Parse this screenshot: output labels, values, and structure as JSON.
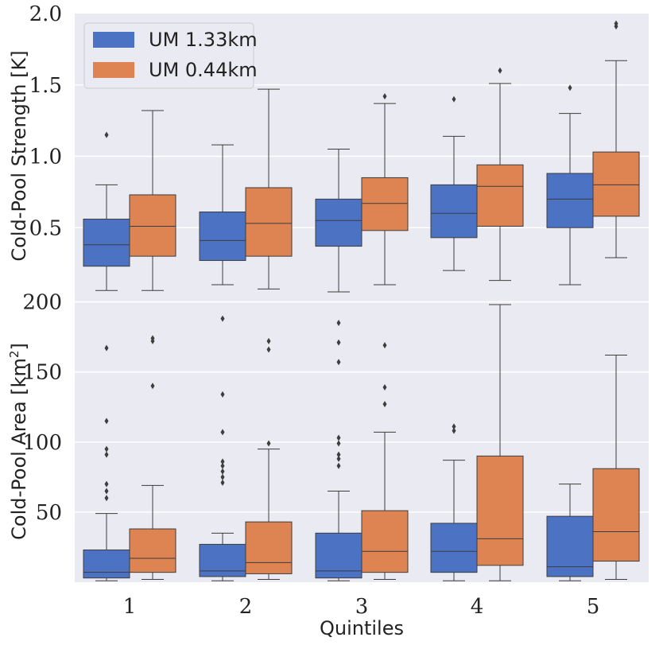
{
  "colors": {
    "panel_bg": "#eaeaf2",
    "grid": "#ffffff",
    "um133": "#4c72c4",
    "um044": "#dd8452",
    "line": "#3d3d3d",
    "text": "#222222"
  },
  "legend": {
    "um133": "UM 1.33km",
    "um044": "UM 0.44km"
  },
  "chart_data": [
    {
      "type": "box",
      "panel": "top",
      "ylabel": "Cold-Pool Strength [K]",
      "ylim": [
        0.0,
        2.0
      ],
      "yticks": [
        0.5,
        1.0,
        1.5,
        2.0
      ],
      "ytick_labels": [
        "0.5",
        "1.0",
        "1.5",
        "2.0"
      ],
      "categories": [
        "1",
        "2",
        "3",
        "4",
        "5"
      ],
      "legend_position": "top-left",
      "series": [
        {
          "name": "UM 1.33km",
          "boxes": [
            {
              "whislo": 0.06,
              "q1": 0.23,
              "med": 0.38,
              "q3": 0.56,
              "whishi": 0.8,
              "fliers": [
                1.15
              ]
            },
            {
              "whislo": 0.1,
              "q1": 0.27,
              "med": 0.41,
              "q3": 0.61,
              "whishi": 1.08,
              "fliers": []
            },
            {
              "whislo": 0.05,
              "q1": 0.37,
              "med": 0.55,
              "q3": 0.7,
              "whishi": 1.05,
              "fliers": []
            },
            {
              "whislo": 0.2,
              "q1": 0.43,
              "med": 0.6,
              "q3": 0.8,
              "whishi": 1.14,
              "fliers": [
                1.4
              ]
            },
            {
              "whislo": 0.1,
              "q1": 0.5,
              "med": 0.7,
              "q3": 0.88,
              "whishi": 1.3,
              "fliers": [
                1.48
              ]
            }
          ]
        },
        {
          "name": "UM 0.44km",
          "boxes": [
            {
              "whislo": 0.06,
              "q1": 0.3,
              "med": 0.51,
              "q3": 0.73,
              "whishi": 1.32,
              "fliers": []
            },
            {
              "whislo": 0.07,
              "q1": 0.3,
              "med": 0.53,
              "q3": 0.78,
              "whishi": 1.47,
              "fliers": []
            },
            {
              "whislo": 0.1,
              "q1": 0.48,
              "med": 0.67,
              "q3": 0.85,
              "whishi": 1.37,
              "fliers": [
                1.42
              ]
            },
            {
              "whislo": 0.13,
              "q1": 0.51,
              "med": 0.79,
              "q3": 0.94,
              "whishi": 1.51,
              "fliers": [
                1.6
              ]
            },
            {
              "whislo": 0.29,
              "q1": 0.58,
              "med": 0.8,
              "q3": 1.03,
              "whishi": 1.67,
              "fliers": [
                1.91,
                1.93
              ]
            }
          ]
        }
      ]
    },
    {
      "type": "box",
      "panel": "bottom",
      "ylabel": "Cold-Pool Area [km²]",
      "ylabel_main": "Cold-Pool Area [km",
      "ylabel_sup": "2",
      "ylabel_end": "]",
      "ylim": [
        0,
        202
      ],
      "yticks": [
        50,
        100,
        150,
        200
      ],
      "ytick_labels": [
        "50",
        "100",
        "150",
        "200"
      ],
      "categories": [
        "1",
        "2",
        "3",
        "4",
        "5"
      ],
      "xlabel": "Quintiles",
      "series": [
        {
          "name": "UM 1.33km",
          "boxes": [
            {
              "whislo": 1,
              "q1": 3,
              "med": 7,
              "q3": 23,
              "whishi": 49,
              "fliers": [
                60,
                65,
                70,
                91,
                95,
                115,
                167
              ]
            },
            {
              "whislo": 1,
              "q1": 4,
              "med": 8,
              "q3": 27,
              "whishi": 35,
              "fliers": [
                71,
                75,
                79,
                83,
                86,
                107,
                134,
                188
              ]
            },
            {
              "whislo": 1,
              "q1": 3,
              "med": 8,
              "q3": 35,
              "whishi": 65,
              "fliers": [
                83,
                88,
                91,
                99,
                103,
                157,
                171,
                185
              ]
            },
            {
              "whislo": 1,
              "q1": 7,
              "med": 22,
              "q3": 42,
              "whishi": 87,
              "fliers": [
                108,
                111
              ]
            },
            {
              "whislo": 1,
              "q1": 4,
              "med": 11,
              "q3": 47,
              "whishi": 70,
              "fliers": []
            }
          ]
        },
        {
          "name": "UM 0.44km",
          "boxes": [
            {
              "whislo": 2,
              "q1": 7,
              "med": 17,
              "q3": 38,
              "whishi": 69,
              "fliers": [
                140,
                172,
                174
              ]
            },
            {
              "whislo": 2,
              "q1": 6,
              "med": 14,
              "q3": 43,
              "whishi": 95,
              "fliers": [
                99,
                166,
                172
              ]
            },
            {
              "whislo": 2,
              "q1": 7,
              "med": 22,
              "q3": 51,
              "whishi": 107,
              "fliers": [
                127,
                139,
                169
              ]
            },
            {
              "whislo": 1,
              "q1": 12,
              "med": 31,
              "q3": 90,
              "whishi": 198,
              "fliers": []
            },
            {
              "whislo": 2,
              "q1": 15,
              "med": 36,
              "q3": 81,
              "whishi": 162,
              "fliers": []
            }
          ]
        }
      ]
    }
  ]
}
